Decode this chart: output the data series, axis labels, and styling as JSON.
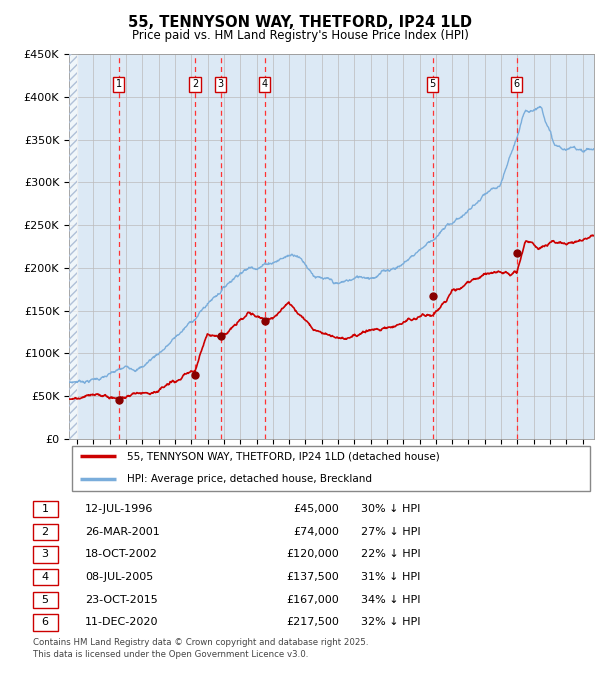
{
  "title": "55, TENNYSON WAY, THETFORD, IP24 1LD",
  "subtitle": "Price paid vs. HM Land Registry's House Price Index (HPI)",
  "footer1": "Contains HM Land Registry data © Crown copyright and database right 2025.",
  "footer2": "This data is licensed under the Open Government Licence v3.0.",
  "legend_red": "55, TENNYSON WAY, THETFORD, IP24 1LD (detached house)",
  "legend_blue": "HPI: Average price, detached house, Breckland",
  "transactions": [
    {
      "id": 1,
      "date": "12-JUL-1996",
      "year": 1996.54,
      "price": 45000,
      "pct": "30%"
    },
    {
      "id": 2,
      "date": "26-MAR-2001",
      "year": 2001.23,
      "price": 74000,
      "pct": "27%"
    },
    {
      "id": 3,
      "date": "18-OCT-2002",
      "year": 2002.8,
      "price": 120000,
      "pct": "22%"
    },
    {
      "id": 4,
      "date": "08-JUL-2005",
      "year": 2005.52,
      "price": 137500,
      "pct": "31%"
    },
    {
      "id": 5,
      "date": "23-OCT-2015",
      "year": 2015.81,
      "price": 167000,
      "pct": "34%"
    },
    {
      "id": 6,
      "date": "11-DEC-2020",
      "year": 2020.95,
      "price": 217500,
      "pct": "32%"
    }
  ],
  "red_color": "#cc0000",
  "blue_color": "#7aaddb",
  "bg_color": "#dce9f5",
  "hatch_color": "#b0c0d8",
  "grid_color": "#aaaaaa",
  "dashed_color": "#ff3333",
  "marker_color": "#880000",
  "ylim": [
    0,
    450000
  ],
  "yticks": [
    0,
    50000,
    100000,
    150000,
    200000,
    250000,
    300000,
    350000,
    400000,
    450000
  ],
  "xlim_start": 1993.5,
  "xlim_end": 2025.7,
  "xticks": [
    1994,
    1995,
    1996,
    1997,
    1998,
    1999,
    2000,
    2001,
    2002,
    2003,
    2004,
    2005,
    2006,
    2007,
    2008,
    2009,
    2010,
    2011,
    2012,
    2013,
    2014,
    2015,
    2016,
    2017,
    2018,
    2019,
    2020,
    2021,
    2022,
    2023,
    2024,
    2025
  ]
}
